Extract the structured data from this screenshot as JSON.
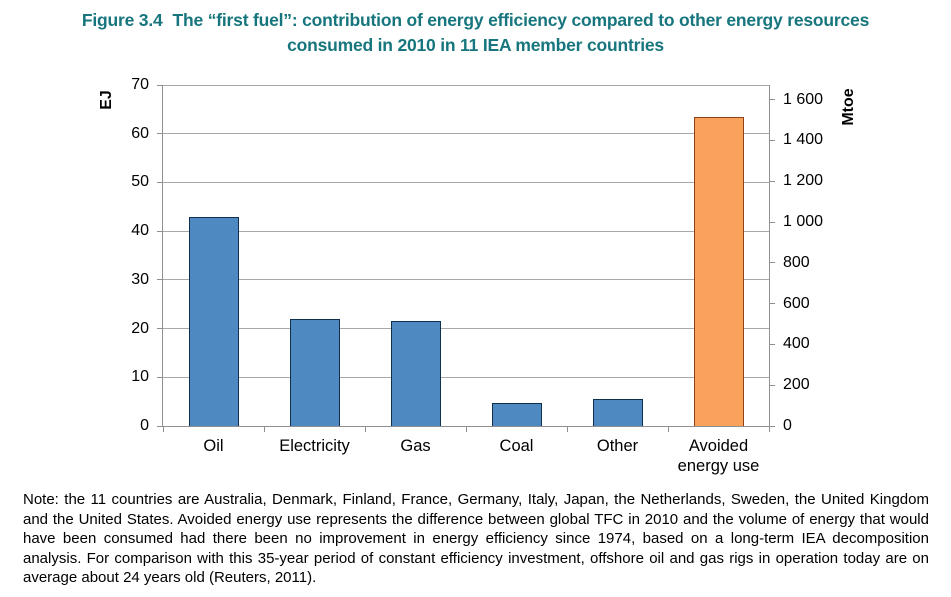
{
  "figure": {
    "label": "Figure 3.4",
    "title_line1": "The “first fuel”: contribution of energy efficiency compared to other energy resources",
    "title_line2": "consumed in 2010 in 11 IEA member countries",
    "title_color": "#17767D",
    "note": "Note: the 11 countries are Australia, Denmark, Finland, France, Germany, Italy, Japan, the Netherlands, Sweden, the United Kingdom and the United States. Avoided energy use represents the difference between global TFC in 2010 and the volume of energy that would have been consumed had there been no improvement in energy efficiency since 1974, based on a long-term IEA decomposition analysis. For comparison with this 35-year period of constant efficiency investment, offshore oil and gas rigs in operation today are on average about 24 years old (Reuters, 2011)."
  },
  "chart_data": {
    "type": "bar",
    "title": "The “first fuel”: contribution of energy efficiency compared to other energy resources consumed in 2010 in 11 IEA member countries",
    "categories": [
      "Oil",
      "Electricity",
      "Gas",
      "Coal",
      "Other",
      "Avoided energy use"
    ],
    "values": [
      43,
      22,
      21.6,
      4.8,
      5.5,
      63.5
    ],
    "value_unit": "EJ",
    "left_axis": {
      "label": "EJ",
      "min": 0,
      "max": 70,
      "tick_step": 10,
      "tick_labels": [
        "0",
        "10",
        "20",
        "30",
        "40",
        "50",
        "60",
        "70"
      ]
    },
    "right_axis": {
      "label": "Mtoe",
      "min": 0,
      "tick_values": [
        0,
        200,
        400,
        600,
        800,
        1000,
        1200,
        1400,
        1600
      ],
      "tick_labels": [
        "0",
        "200",
        "400",
        "600",
        "800",
        "1 000",
        "1 200",
        "1 400",
        "1 600"
      ],
      "mtoe_per_ej": 23.8846
    },
    "grid": true,
    "legend": "none",
    "bar_fill": [
      "#4E8AC1",
      "#4E8AC1",
      "#4E8AC1",
      "#4E8AC1",
      "#4E8AC1",
      "#F9A25B"
    ],
    "bar_stroke": [
      "#10304F",
      "#10304F",
      "#10304F",
      "#10304F",
      "#10304F",
      "#8C4117"
    ],
    "gridline_color": "#A8A8A8",
    "axis_color": "#8F8F8F"
  }
}
